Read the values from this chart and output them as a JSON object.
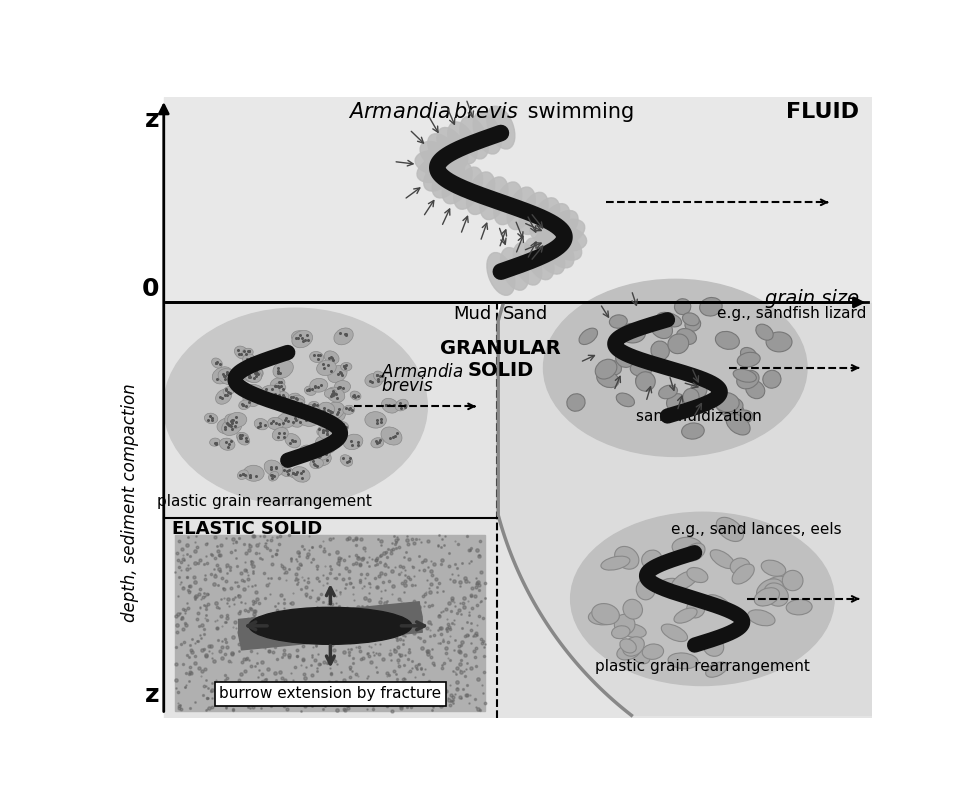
{
  "bg_top": "#e8e8e8",
  "bg_mid_left": "#e4e4e4",
  "bg_mid_right": "#dcdcdc",
  "bg_bottom": "#e4e4e4",
  "bg_elastic": "#b0b0b0",
  "title_fluid": "FLUID",
  "title_granular": "GRANULAR\nSOLID",
  "title_elastic": "ELASTIC SOLID",
  "label_grain_size": "grain size",
  "label_depth": "depth, sediment compaction",
  "label_z_top": "z",
  "label_z_bottom": "z",
  "label_0": "0",
  "label_mud": "Mud",
  "label_sand": "Sand",
  "label_armandia_swim_italic": "Armandia brevis",
  "label_armandia_swim_normal": " swimming",
  "label_armandia_burrow_l1": "Armandia",
  "label_armandia_burrow_l2": "brevis",
  "label_plastic1": "plastic grain rearrangement",
  "label_plastic2": "plastic grain rearrangement",
  "label_sand_fluidization": "sand fluidization",
  "label_sandfish": "e.g., sandfish lizard",
  "label_sand_lances": "e.g., sand lances, eels",
  "label_burrow_fracture": "burrow extension by fracture",
  "worm_color": "#111111",
  "grain_color_mud": "#aaaaaa",
  "grain_color_sand": "#999999",
  "arrow_color": "#444444",
  "curve_color": "#888888"
}
